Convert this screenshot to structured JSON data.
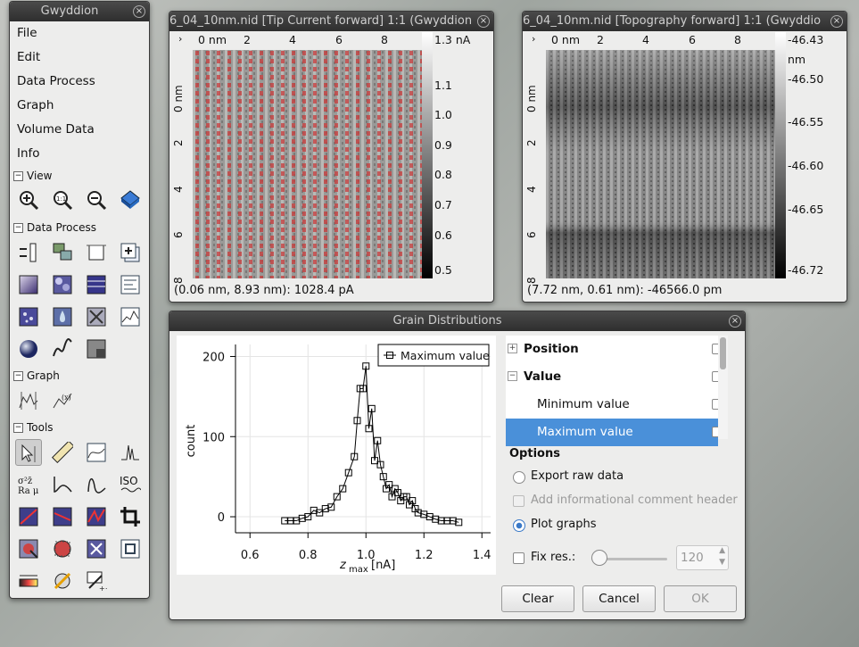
{
  "toolbox": {
    "title": "Gwyddion",
    "menu": [
      "File",
      "Edit",
      "Data Process",
      "Graph",
      "Volume Data",
      "Info"
    ],
    "sections": {
      "view": "View",
      "data_process": "Data Process",
      "graph": "Graph",
      "tools": "Tools"
    },
    "tools_labels": {
      "iso": "ISO"
    }
  },
  "current_window": {
    "title": "6_04_10nm.nid [Tip Current forward] 1:1 (Gwyddion",
    "x_unit": "0 nm",
    "x_ticks": [
      "2",
      "4",
      "6",
      "8"
    ],
    "y_ticks": [
      "0 nm",
      "2",
      "4",
      "6",
      "8"
    ],
    "scale_labels": [
      "1.3 nA",
      "1.1",
      "1.0",
      "0.9",
      "0.8",
      "0.7",
      "0.6",
      "0.5"
    ],
    "status": "(0.06 nm, 8.93 nm): 1028.4 pA"
  },
  "topo_window": {
    "title": "6_04_10nm.nid [Topography forward] 1:1 (Gwyddio",
    "x_unit": "0 nm",
    "x_ticks": [
      "2",
      "4",
      "6",
      "8"
    ],
    "y_ticks": [
      "0 nm",
      "2",
      "4",
      "6",
      "8"
    ],
    "scale_labels": [
      "-46.43",
      "nm",
      "-46.50",
      "-46.55",
      "-46.60",
      "-46.65",
      "-46.72"
    ],
    "status": "(7.72 nm, 0.61 nm): -46566.0 pm"
  },
  "grain_dialog": {
    "title": "Grain Distributions",
    "tree": [
      {
        "label": "Position",
        "expander": "+",
        "indent": 0,
        "bold": true,
        "selected": false
      },
      {
        "label": "Value",
        "expander": "−",
        "indent": 0,
        "bold": true,
        "selected": false
      },
      {
        "label": "Minimum value",
        "expander": "",
        "indent": 1,
        "bold": false,
        "selected": false
      },
      {
        "label": "Maximum value",
        "expander": "",
        "indent": 1,
        "bold": false,
        "selected": true
      }
    ],
    "options_header": "Options",
    "export_raw": "Export raw data",
    "add_comment": "Add informational comment header",
    "plot_graphs": "Plot graphs",
    "fix_res": "Fix res.:",
    "fix_res_value": "120",
    "fix_res_slider": 0.02,
    "buttons": {
      "clear": "Clear",
      "cancel": "Cancel",
      "ok": "OK"
    },
    "accent": "#4a90d9"
  },
  "chart_data": {
    "type": "line",
    "series": [
      {
        "name": "Maximum value",
        "x": [
          0.72,
          0.74,
          0.76,
          0.78,
          0.8,
          0.82,
          0.84,
          0.86,
          0.88,
          0.9,
          0.92,
          0.94,
          0.96,
          0.97,
          0.98,
          0.99,
          1.0,
          1.01,
          1.02,
          1.03,
          1.04,
          1.05,
          1.06,
          1.07,
          1.08,
          1.09,
          1.1,
          1.11,
          1.12,
          1.13,
          1.14,
          1.15,
          1.16,
          1.17,
          1.18,
          1.2,
          1.22,
          1.24,
          1.26,
          1.28,
          1.3,
          1.32
        ],
        "y": [
          -5,
          -5,
          -5,
          -2,
          0,
          8,
          5,
          10,
          12,
          25,
          35,
          55,
          75,
          120,
          160,
          160,
          188,
          110,
          135,
          70,
          95,
          65,
          50,
          35,
          40,
          25,
          35,
          30,
          20,
          25,
          25,
          15,
          20,
          10,
          5,
          3,
          0,
          -3,
          -5,
          -5,
          -5,
          -7
        ]
      }
    ],
    "xlabel": "z",
    "xlabel_sub": "max",
    "xlabel_unit": "[nA]",
    "ylabel": "count",
    "xlim": [
      0.55,
      1.43
    ],
    "ylim": [
      -20,
      215
    ],
    "x_ticks": [
      "0.6",
      "0.8",
      "1.0",
      "1.2",
      "1.4"
    ],
    "y_ticks": [
      "200",
      "100",
      "0"
    ],
    "grid": true,
    "legend": "top-right"
  }
}
